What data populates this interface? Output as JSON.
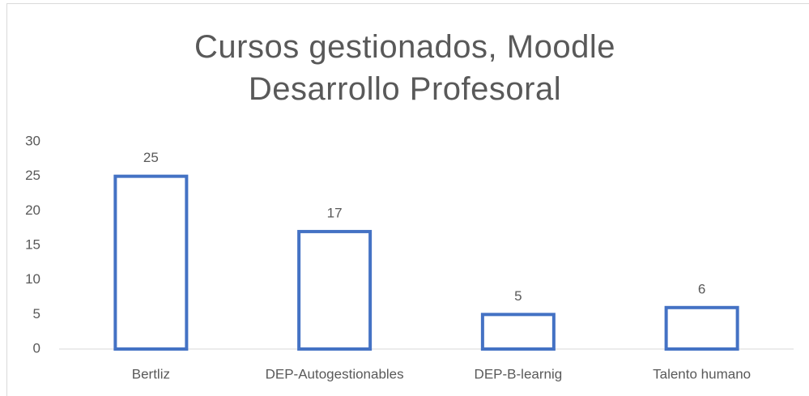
{
  "chart_data": {
    "type": "bar",
    "title": "Cursos gestionados, Moodle Desarrollo Profesoral",
    "categories": [
      "Bertliz",
      "DEP-Autogestionables",
      "DEP-B-learnig",
      "Talento humano"
    ],
    "values": [
      25,
      17,
      5,
      6
    ],
    "color": "#4472c4",
    "ylim": [
      0,
      30
    ],
    "yticks": [
      0,
      5,
      10,
      15,
      20,
      25,
      30
    ],
    "grid": false
  }
}
